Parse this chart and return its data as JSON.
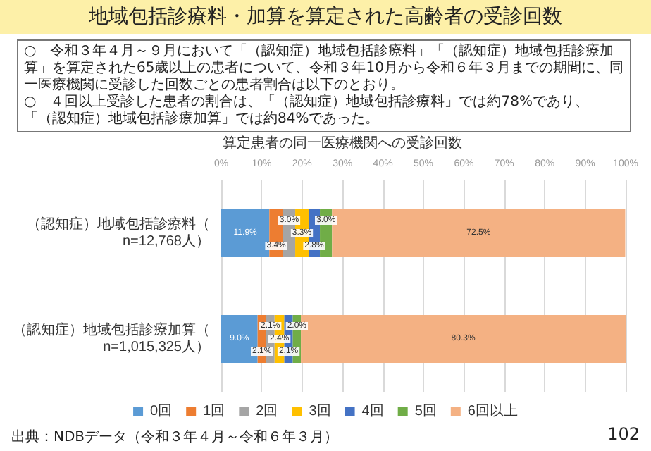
{
  "chart_data": {
    "type": "bar",
    "orientation": "horizontal",
    "stacked": true,
    "title": "地域包括診療料・加算を算定された高齢者の受診回数",
    "subtitle": "算定患者の同一医療機関への受診回数",
    "annotations": [
      "○　令和３年４月～９月において「（認知症）地域包括診療料」「（認知症）地域包括診療加算」を算定された65歳以上の患者について、令和３年10月から令和６年３月までの期間に、同一医療機関に受診した回数ごとの患者割合は以下のとおり。",
      "○　４回以上受診した患者の割合は、「（認知症）地域包括診療料」では約78%であり、「（認知症）地域包括診療加算」では約84%であった。",
      "出典：NDBデータ（令和３年４月～令和６年３月）",
      "102"
    ],
    "categories": [
      "（認知症）地域包括診療料（n=12,768人）",
      "（認知症）地域包括診療加算（n=1,015,325人）"
    ],
    "series": [
      {
        "name": "0回",
        "color": "#5b9bd5",
        "values": [
          11.9,
          9.0
        ],
        "value_labels": [
          "11.9%",
          "9.0%"
        ]
      },
      {
        "name": "1回",
        "color": "#ed7d31",
        "values": [
          3.4,
          2.1
        ],
        "value_labels": [
          "3.4%",
          "2.1%"
        ]
      },
      {
        "name": "2回",
        "color": "#a5a5a5",
        "values": [
          3.0,
          2.1
        ],
        "value_labels": [
          "3.0%",
          "2.1%"
        ]
      },
      {
        "name": "3回",
        "color": "#ffc000",
        "values": [
          3.3,
          2.4
        ],
        "value_labels": [
          "3.3%",
          "2.4%"
        ]
      },
      {
        "name": "4回",
        "color": "#4472c4",
        "values": [
          2.8,
          2.1
        ],
        "value_labels": [
          "2.8%",
          "2.1%"
        ]
      },
      {
        "name": "5回",
        "color": "#70ad47",
        "values": [
          3.0,
          2.0
        ],
        "value_labels": [
          "3.0%",
          "2.0%"
        ]
      },
      {
        "name": "6回以上",
        "color": "#f4b183",
        "values": [
          72.5,
          80.3
        ],
        "value_labels": [
          "72.5%",
          "80.3%"
        ]
      }
    ],
    "xlim": [
      0,
      100
    ],
    "xticks": [
      {
        "value": 0,
        "label": "0%"
      },
      {
        "value": 10,
        "label": "10%"
      },
      {
        "value": 20,
        "label": "20%"
      },
      {
        "value": 30,
        "label": "30%"
      },
      {
        "value": 40,
        "label": "40%"
      },
      {
        "value": 50,
        "label": "50%"
      },
      {
        "value": 60,
        "label": "60%"
      },
      {
        "value": 70,
        "label": "70%"
      },
      {
        "value": 80,
        "label": "80%"
      },
      {
        "value": 90,
        "label": "90%"
      },
      {
        "value": 100,
        "label": "100%"
      }
    ],
    "grid": "x",
    "legend": "bottom"
  }
}
